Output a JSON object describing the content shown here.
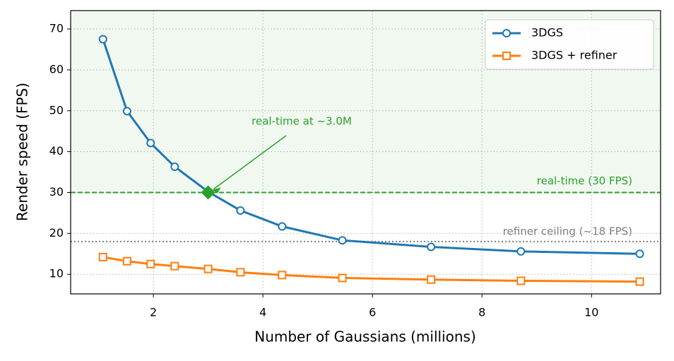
{
  "chart_data": {
    "type": "line",
    "x_label": "Number of Gaussians (millions)",
    "y_label": "Render speed (FPS)",
    "x": [
      1.08,
      1.52,
      1.95,
      2.39,
      3.0,
      3.59,
      4.35,
      5.45,
      7.07,
      8.71,
      10.88
    ],
    "series": [
      {
        "name": "3DGS",
        "color": "#1f77b4",
        "marker": "circle",
        "values": [
          67.5,
          49.9,
          42.1,
          36.3,
          30.2,
          25.6,
          21.7,
          18.3,
          16.7,
          15.6,
          15.0
        ]
      },
      {
        "name": "3DGS + refiner",
        "color": "#ff7f0e",
        "marker": "square",
        "values": [
          14.2,
          13.2,
          12.5,
          12.0,
          11.3,
          10.5,
          9.8,
          9.1,
          8.7,
          8.4,
          8.2
        ]
      }
    ],
    "xlim": [
      0.49,
      11.26
    ],
    "ylim": [
      5.2,
      74.5
    ],
    "xticks": [
      2,
      4,
      6,
      8,
      10
    ],
    "yticks": [
      10,
      20,
      30,
      40,
      50,
      60,
      70
    ],
    "grid": true,
    "legend": "upper right",
    "reference_lines": [
      {
        "value": 30,
        "label": "real-time (30 FPS)",
        "color": "#2ca02c",
        "style": "dashed",
        "shade": "above"
      },
      {
        "value": 18,
        "label": "refiner ceiling (~18 FPS)",
        "color": "#7f7f7f",
        "style": "dotted"
      }
    ],
    "highlight": {
      "x": 3.0,
      "y": 30,
      "label": "real-time at ~3.0M",
      "color": "#2ca02c"
    }
  }
}
